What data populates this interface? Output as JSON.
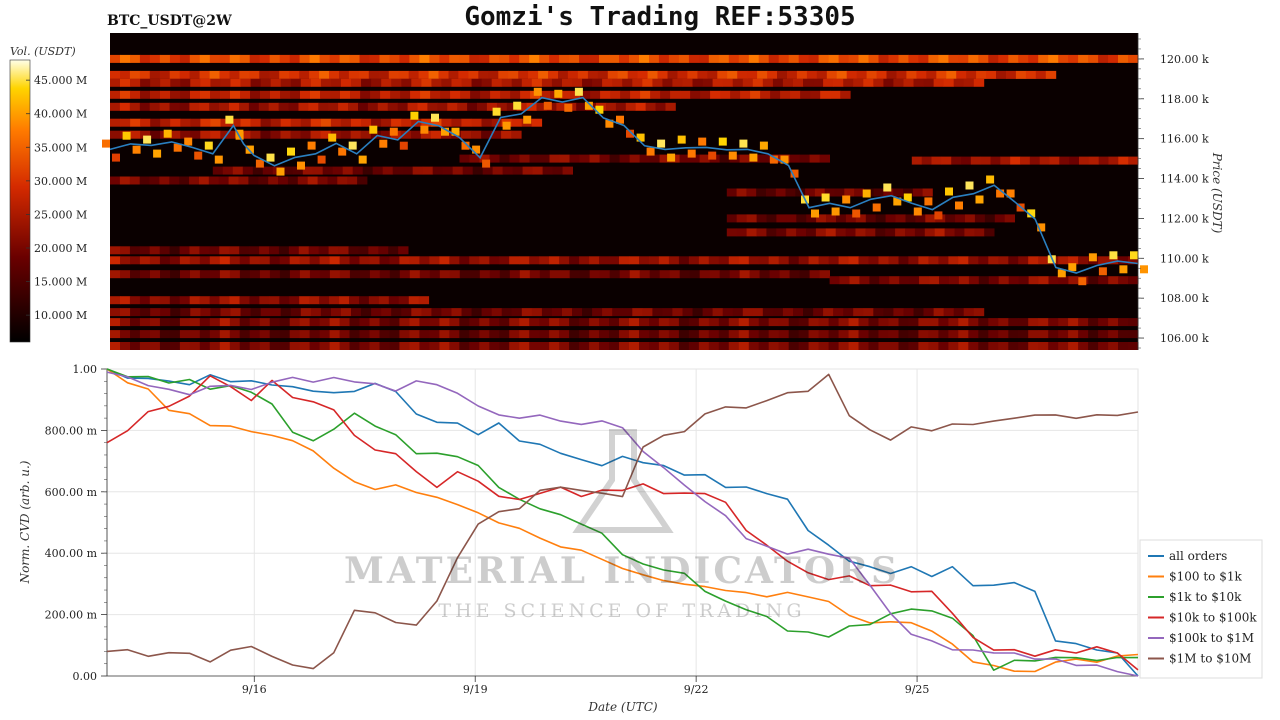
{
  "header": {
    "title": "Gomzi's Trading REF:53305",
    "symbol": "BTC_USDT@2W"
  },
  "watermark": {
    "line1": "MATERIAL INDICATORS",
    "line2": "THE SCIENCE OF TRADING"
  },
  "colors": {
    "heat_bg": "#0a0000",
    "price_line": "#2a7fc0",
    "grid": "#e6e6e6"
  },
  "chart_data": [
    {
      "type": "heatmap",
      "title": "",
      "ylabel": "Price (USDT)",
      "colorbar_label": "Vol. (USDT)",
      "colorbar_ticks": [
        "10.000 M",
        "15.000 M",
        "20.000 M",
        "25.000 M",
        "30.000 M",
        "35.000 M",
        "40.000 M",
        "45.000 M"
      ],
      "colorbar_range": [
        6000000,
        48000000
      ],
      "y_ticks": [
        "106.00 k",
        "108.00 k",
        "110.00 k",
        "112.00 k",
        "114.00 k",
        "116.00 k",
        "118.00 k",
        "120.00 k"
      ],
      "ylim": [
        105400,
        121300
      ],
      "xlim": [
        "2025-09-14",
        "2025-09-28"
      ],
      "liquidity_bands": [
        {
          "price": 120000,
          "start": 0.0,
          "end": 1.0,
          "level": 0.62
        },
        {
          "price": 119200,
          "start": 0.0,
          "end": 0.92,
          "level": 0.55
        },
        {
          "price": 118800,
          "start": 0.0,
          "end": 0.85,
          "level": 0.45
        },
        {
          "price": 118200,
          "start": 0.0,
          "end": 0.72,
          "level": 0.48
        },
        {
          "price": 117600,
          "start": 0.0,
          "end": 0.55,
          "level": 0.42
        },
        {
          "price": 116800,
          "start": 0.0,
          "end": 0.42,
          "level": 0.5
        },
        {
          "price": 116200,
          "start": 0.0,
          "end": 0.4,
          "level": 0.4
        },
        {
          "price": 115000,
          "start": 0.34,
          "end": 0.7,
          "level": 0.32
        },
        {
          "price": 114900,
          "start": 0.78,
          "end": 1.0,
          "level": 0.42
        },
        {
          "price": 114400,
          "start": 0.1,
          "end": 0.45,
          "level": 0.3
        },
        {
          "price": 113900,
          "start": 0.0,
          "end": 0.25,
          "level": 0.32
        },
        {
          "price": 113300,
          "start": 0.6,
          "end": 0.8,
          "level": 0.28
        },
        {
          "price": 112000,
          "start": 0.6,
          "end": 0.88,
          "level": 0.3
        },
        {
          "price": 111300,
          "start": 0.6,
          "end": 0.86,
          "level": 0.34
        },
        {
          "price": 110400,
          "start": 0.0,
          "end": 0.29,
          "level": 0.3
        },
        {
          "price": 109900,
          "start": 0.0,
          "end": 1.0,
          "level": 0.4
        },
        {
          "price": 109200,
          "start": 0.0,
          "end": 0.7,
          "level": 0.3
        },
        {
          "price": 108900,
          "start": 0.7,
          "end": 1.0,
          "level": 0.34
        },
        {
          "price": 107900,
          "start": 0.0,
          "end": 0.31,
          "level": 0.38
        },
        {
          "price": 107300,
          "start": 0.0,
          "end": 0.85,
          "level": 0.3
        },
        {
          "price": 106800,
          "start": 0.0,
          "end": 1.0,
          "level": 0.34
        },
        {
          "price": 106200,
          "start": 0.0,
          "end": 1.0,
          "level": 0.3
        },
        {
          "price": 105600,
          "start": 0.0,
          "end": 1.0,
          "level": 0.34
        }
      ],
      "price_series": {
        "name": "",
        "x": [
          0.0,
          0.02,
          0.04,
          0.06,
          0.08,
          0.1,
          0.12,
          0.13,
          0.14,
          0.16,
          0.18,
          0.2,
          0.22,
          0.24,
          0.26,
          0.28,
          0.3,
          0.32,
          0.34,
          0.36,
          0.38,
          0.4,
          0.42,
          0.44,
          0.46,
          0.48,
          0.5,
          0.52,
          0.54,
          0.56,
          0.58,
          0.6,
          0.62,
          0.64,
          0.66,
          0.68,
          0.7,
          0.72,
          0.74,
          0.76,
          0.78,
          0.8,
          0.82,
          0.84,
          0.86,
          0.88,
          0.9,
          0.92,
          0.94,
          0.96,
          0.98,
          1.0
        ],
        "y": [
          115400,
          115800,
          115600,
          115900,
          115500,
          115300,
          116600,
          115800,
          115100,
          114700,
          115000,
          115300,
          115700,
          115300,
          116100,
          116000,
          116800,
          116700,
          116000,
          115100,
          117000,
          117300,
          118000,
          117900,
          118000,
          117100,
          116600,
          115700,
          115400,
          115600,
          115500,
          115500,
          115400,
          115300,
          114600,
          112600,
          112700,
          112600,
          112900,
          113200,
          112700,
          112500,
          113000,
          113300,
          113600,
          112900,
          111900,
          109600,
          109200,
          109700,
          109800,
          109800
        ]
      }
    },
    {
      "type": "line",
      "title": "",
      "xlabel": "Date (UTC)",
      "ylabel": "Norm. CVD (arb. u.)",
      "y_ticks": [
        "0.00",
        "200.00 m",
        "400.00 m",
        "600.00 m",
        "800.00 m",
        "1.00"
      ],
      "ylim": [
        0,
        1.0
      ],
      "x_ticks": [
        "9/16",
        "9/19",
        "9/22",
        "9/25"
      ],
      "xlim": [
        "2025-09-14",
        "2025-09-28"
      ],
      "legend_position": "right",
      "x": [
        0.0,
        0.02,
        0.04,
        0.06,
        0.08,
        0.1,
        0.12,
        0.14,
        0.16,
        0.18,
        0.2,
        0.22,
        0.24,
        0.26,
        0.28,
        0.3,
        0.32,
        0.34,
        0.36,
        0.38,
        0.4,
        0.42,
        0.44,
        0.46,
        0.48,
        0.5,
        0.52,
        0.54,
        0.56,
        0.58,
        0.6,
        0.62,
        0.64,
        0.66,
        0.68,
        0.7,
        0.72,
        0.74,
        0.76,
        0.78,
        0.8,
        0.82,
        0.84,
        0.86,
        0.88,
        0.9,
        0.92,
        0.94,
        0.96,
        0.98,
        1.0
      ],
      "series": [
        {
          "name": "all orders",
          "color": "#1f77b4",
          "values": [
            1.0,
            0.97,
            0.97,
            0.96,
            0.95,
            0.98,
            0.96,
            0.96,
            0.95,
            0.94,
            0.93,
            0.92,
            0.93,
            0.95,
            0.93,
            0.85,
            0.83,
            0.82,
            0.79,
            0.82,
            0.77,
            0.75,
            0.73,
            0.7,
            0.69,
            0.71,
            0.7,
            0.68,
            0.66,
            0.65,
            0.62,
            0.61,
            0.6,
            0.57,
            0.48,
            0.42,
            0.38,
            0.35,
            0.34,
            0.35,
            0.33,
            0.35,
            0.3,
            0.29,
            0.31,
            0.27,
            0.12,
            0.1,
            0.09,
            0.07,
            0.0
          ]
        },
        {
          "name": "$100 to $1k",
          "color": "#ff7f0e",
          "values": [
            1.0,
            0.96,
            0.93,
            0.87,
            0.85,
            0.82,
            0.81,
            0.8,
            0.78,
            0.77,
            0.73,
            0.68,
            0.63,
            0.61,
            0.62,
            0.6,
            0.58,
            0.56,
            0.53,
            0.5,
            0.48,
            0.45,
            0.42,
            0.41,
            0.38,
            0.35,
            0.33,
            0.31,
            0.3,
            0.29,
            0.28,
            0.27,
            0.26,
            0.27,
            0.26,
            0.24,
            0.2,
            0.17,
            0.18,
            0.17,
            0.15,
            0.1,
            0.05,
            0.03,
            0.02,
            0.01,
            0.05,
            0.05,
            0.05,
            0.06,
            0.07
          ]
        },
        {
          "name": "$1k to $10k",
          "color": "#2ca02c",
          "values": [
            1.0,
            0.98,
            0.97,
            0.96,
            0.96,
            0.94,
            0.94,
            0.93,
            0.88,
            0.8,
            0.76,
            0.81,
            0.85,
            0.82,
            0.78,
            0.73,
            0.72,
            0.72,
            0.68,
            0.62,
            0.57,
            0.55,
            0.52,
            0.5,
            0.46,
            0.4,
            0.36,
            0.35,
            0.33,
            0.28,
            0.24,
            0.22,
            0.19,
            0.15,
            0.14,
            0.13,
            0.16,
            0.17,
            0.2,
            0.22,
            0.21,
            0.19,
            0.13,
            0.02,
            0.05,
            0.05,
            0.06,
            0.06,
            0.05,
            0.06,
            0.06
          ]
        },
        {
          "name": "$10k to $100k",
          "color": "#d62728",
          "values": [
            0.76,
            0.8,
            0.86,
            0.88,
            0.91,
            0.98,
            0.94,
            0.9,
            0.96,
            0.91,
            0.89,
            0.87,
            0.78,
            0.74,
            0.72,
            0.67,
            0.61,
            0.67,
            0.63,
            0.59,
            0.57,
            0.6,
            0.61,
            0.59,
            0.6,
            0.61,
            0.62,
            0.6,
            0.59,
            0.6,
            0.56,
            0.48,
            0.42,
            0.38,
            0.33,
            0.32,
            0.32,
            0.3,
            0.29,
            0.28,
            0.27,
            0.21,
            0.12,
            0.09,
            0.08,
            0.07,
            0.08,
            0.08,
            0.09,
            0.08,
            0.02
          ]
        },
        {
          "name": "$100k to $1M",
          "color": "#9467bd",
          "values": [
            0.99,
            0.97,
            0.95,
            0.93,
            0.92,
            0.94,
            0.95,
            0.93,
            0.96,
            0.97,
            0.96,
            0.97,
            0.96,
            0.95,
            0.93,
            0.96,
            0.95,
            0.92,
            0.88,
            0.85,
            0.84,
            0.85,
            0.83,
            0.82,
            0.83,
            0.81,
            0.73,
            0.68,
            0.62,
            0.57,
            0.52,
            0.45,
            0.42,
            0.4,
            0.41,
            0.4,
            0.38,
            0.3,
            0.2,
            0.14,
            0.11,
            0.09,
            0.08,
            0.08,
            0.07,
            0.06,
            0.05,
            0.04,
            0.03,
            0.02,
            0.0
          ]
        },
        {
          "name": "$1M to $10M",
          "color": "#8c564b",
          "values": [
            0.08,
            0.08,
            0.07,
            0.07,
            0.08,
            0.04,
            0.09,
            0.09,
            0.07,
            0.03,
            0.03,
            0.07,
            0.22,
            0.2,
            0.18,
            0.16,
            0.25,
            0.38,
            0.5,
            0.53,
            0.55,
            0.6,
            0.62,
            0.6,
            0.6,
            0.58,
            0.75,
            0.78,
            0.8,
            0.85,
            0.88,
            0.87,
            0.9,
            0.92,
            0.93,
            0.98,
            0.85,
            0.8,
            0.77,
            0.81,
            0.8,
            0.82,
            0.82,
            0.83,
            0.84,
            0.85,
            0.85,
            0.84,
            0.85,
            0.85,
            0.86
          ]
        }
      ]
    }
  ]
}
